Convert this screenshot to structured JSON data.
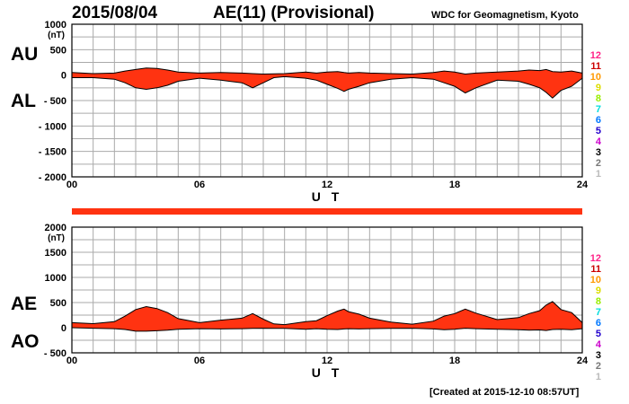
{
  "header": {
    "date": "2015/08/04",
    "title": "AE(11) (Provisional)",
    "org": "WDC for Geomagnetism, Kyoto"
  },
  "footer": {
    "created": "[Created at 2015-12-10 08:57UT]"
  },
  "labels": {
    "au": "AU",
    "al": "AL",
    "ae": "AE",
    "ao": "AO"
  },
  "colors": {
    "fill": "#ff3311",
    "grid": "#aaaaaa",
    "line": "#000000"
  },
  "legend": {
    "items": [
      {
        "label": "12",
        "color": "#ff2288"
      },
      {
        "label": "11",
        "color": "#cc0000"
      },
      {
        "label": "10",
        "color": "#ff9900"
      },
      {
        "label": "9",
        "color": "#dddd00"
      },
      {
        "label": "8",
        "color": "#99ee00"
      },
      {
        "label": "7",
        "color": "#00dddd"
      },
      {
        "label": "6",
        "color": "#0077ff"
      },
      {
        "label": "5",
        "color": "#2200cc"
      },
      {
        "label": "4",
        "color": "#cc00cc"
      },
      {
        "label": "3",
        "color": "#000000"
      },
      {
        "label": "2",
        "color": "#777777"
      },
      {
        "label": "1",
        "color": "#bbbbbb"
      }
    ]
  },
  "chart_data": [
    {
      "type": "area",
      "name": "AU/AL",
      "xlabel": "U T",
      "ylabel": "(nT)",
      "xlim": [
        0,
        24
      ],
      "ylim": [
        -2000,
        1000
      ],
      "xticks": [
        "00",
        "06",
        "12",
        "18",
        "24"
      ],
      "yticks": [
        "1000",
        "500",
        "0",
        "- 500",
        "- 1000",
        "- 1500",
        "- 2000"
      ],
      "x": [
        0,
        1,
        2,
        2.5,
        3,
        3.5,
        4,
        4.5,
        5,
        6,
        7,
        8,
        8.5,
        9,
        9.5,
        10,
        11,
        11.5,
        12,
        12.5,
        12.8,
        13,
        13.5,
        14,
        15,
        16,
        17,
        17.5,
        18,
        18.5,
        19,
        20,
        21,
        21.5,
        22,
        22.3,
        22.6,
        23,
        23.5,
        24
      ],
      "upper": [
        50,
        30,
        40,
        80,
        110,
        140,
        130,
        100,
        60,
        40,
        50,
        40,
        30,
        20,
        25,
        30,
        60,
        40,
        60,
        70,
        50,
        40,
        50,
        40,
        30,
        20,
        50,
        80,
        60,
        20,
        40,
        60,
        80,
        100,
        90,
        110,
        70,
        60,
        80,
        40
      ],
      "lower": [
        -50,
        -50,
        -80,
        -150,
        -250,
        -280,
        -250,
        -200,
        -120,
        -60,
        -100,
        -150,
        -250,
        -150,
        -50,
        -30,
        -60,
        -100,
        -180,
        -260,
        -320,
        -280,
        -220,
        -150,
        -80,
        -50,
        -80,
        -150,
        -220,
        -350,
        -250,
        -100,
        -120,
        -180,
        -250,
        -340,
        -450,
        -300,
        -220,
        -60
      ]
    },
    {
      "type": "area",
      "name": "AE/AO",
      "xlabel": "U T",
      "ylabel": "(nT)",
      "xlim": [
        0,
        24
      ],
      "ylim": [
        -500,
        2000
      ],
      "xticks": [
        "00",
        "06",
        "12",
        "18",
        "24"
      ],
      "yticks": [
        "2000",
        "1500",
        "1000",
        "500",
        "0",
        "- 500"
      ],
      "x": [
        0,
        1,
        2,
        2.5,
        3,
        3.5,
        4,
        4.5,
        5,
        6,
        7,
        8,
        8.5,
        9,
        9.5,
        10,
        11,
        11.5,
        12,
        12.5,
        12.8,
        13,
        13.5,
        14,
        15,
        16,
        17,
        17.5,
        18,
        18.5,
        19,
        20,
        21,
        21.5,
        22,
        22.3,
        22.6,
        23,
        23.5,
        24
      ],
      "upper": [
        100,
        80,
        120,
        230,
        360,
        420,
        380,
        300,
        180,
        100,
        150,
        190,
        280,
        170,
        75,
        60,
        120,
        140,
        240,
        330,
        370,
        320,
        270,
        190,
        110,
        70,
        130,
        230,
        280,
        370,
        290,
        160,
        200,
        280,
        340,
        450,
        520,
        360,
        300,
        100
      ],
      "lower": [
        0,
        -10,
        -20,
        -35,
        -70,
        -70,
        -60,
        -50,
        -30,
        -20,
        -25,
        -20,
        -15,
        -10,
        -13,
        -15,
        -30,
        -20,
        -30,
        -35,
        -25,
        -20,
        -25,
        -20,
        -15,
        -10,
        -25,
        -40,
        -30,
        -10,
        -20,
        -30,
        -40,
        -50,
        -45,
        -55,
        -35,
        -30,
        -40,
        -20
      ]
    }
  ]
}
